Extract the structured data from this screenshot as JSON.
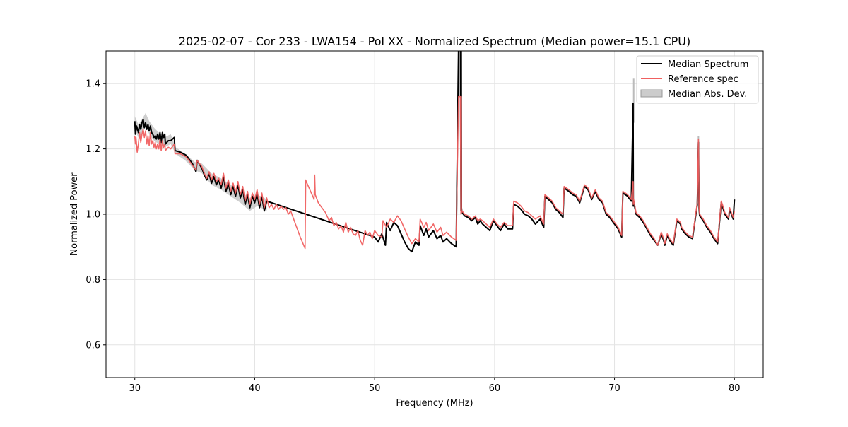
{
  "chart_data": {
    "type": "line",
    "title": "2025-02-07 - Cor 233 - LWA154 - Pol XX - Normalized Spectrum (Median power=15.1 CPU)",
    "xlabel": "Frequency (MHz)",
    "ylabel": "Normalized Power",
    "xlim": [
      27.6,
      82.4
    ],
    "ylim": [
      0.5,
      1.5
    ],
    "xticks": [
      30,
      40,
      50,
      60,
      70,
      80
    ],
    "yticks": [
      0.6,
      0.8,
      1.0,
      1.2,
      1.4
    ],
    "xtick_labels": [
      "30",
      "40",
      "50",
      "60",
      "70",
      "80"
    ],
    "ytick_labels": [
      "0.6",
      "0.8",
      "1.0",
      "1.2",
      "1.4"
    ],
    "grid": true,
    "legend_position": "top-right",
    "legend": [
      {
        "label": "Median Spectrum",
        "kind": "line",
        "color": "#000000"
      },
      {
        "label": "Reference spec",
        "kind": "line",
        "color": "#f06060"
      },
      {
        "label": "Median Abs. Dev.",
        "kind": "band",
        "color": "#bbbbbb"
      }
    ],
    "series": [
      {
        "name": "Median Abs. Dev.",
        "kind": "band",
        "color": "#bbbbbb",
        "x": [
          30.0,
          30.3,
          30.6,
          30.9,
          31.2,
          31.6,
          32.0,
          32.5,
          33.0,
          33.4,
          34.2,
          35.0,
          35.6,
          36.4,
          37.2,
          38.0,
          38.8,
          39.6,
          40.2,
          40.8,
          41.0
        ],
        "lower": [
          1.26,
          1.235,
          1.245,
          1.275,
          1.245,
          1.225,
          1.215,
          1.205,
          1.215,
          1.185,
          1.165,
          1.135,
          1.125,
          1.09,
          1.075,
          1.055,
          1.035,
          1.01,
          1.025,
          1.015,
          1.01
        ],
        "upper": [
          1.3,
          1.275,
          1.29,
          1.31,
          1.285,
          1.265,
          1.25,
          1.235,
          1.245,
          1.205,
          1.185,
          1.16,
          1.155,
          1.125,
          1.11,
          1.09,
          1.07,
          1.05,
          1.06,
          1.05,
          1.045
        ]
      },
      {
        "name": "Median Spectrum",
        "kind": "line",
        "color": "#000000",
        "x": [
          30.0,
          30.05,
          30.15,
          30.3,
          30.4,
          30.5,
          30.6,
          30.7,
          30.8,
          30.9,
          31.0,
          31.1,
          31.2,
          31.3,
          31.4,
          31.5,
          31.6,
          31.7,
          31.8,
          31.9,
          32.0,
          32.1,
          32.2,
          32.3,
          32.4,
          32.5,
          32.55,
          32.8,
          33.0,
          33.3,
          33.35,
          33.8,
          34.3,
          34.8,
          35.1,
          35.2,
          35.6,
          35.8,
          36.0,
          36.2,
          36.4,
          36.6,
          36.8,
          37.0,
          37.2,
          37.4,
          37.6,
          37.8,
          38.0,
          38.2,
          38.4,
          38.6,
          38.8,
          39.0,
          39.2,
          39.4,
          39.6,
          39.8,
          40.0,
          40.2,
          40.4,
          40.6,
          40.8,
          41.0,
          50.0,
          50.3,
          50.6,
          50.9,
          51.0,
          51.3,
          51.6,
          51.9,
          52.2,
          52.5,
          52.8,
          53.1,
          53.4,
          53.7,
          53.8,
          54.1,
          54.3,
          54.5,
          54.9,
          55.2,
          55.5,
          55.7,
          56.0,
          56.4,
          56.8,
          57.0,
          57.15,
          57.2,
          57.22,
          57.24,
          57.26,
          57.3,
          57.5,
          57.8,
          58.1,
          58.4,
          58.6,
          58.8,
          59.0,
          59.3,
          59.6,
          59.9,
          60.2,
          60.5,
          60.8,
          61.1,
          61.5,
          61.6,
          61.9,
          62.2,
          62.5,
          62.8,
          63.1,
          63.4,
          63.8,
          64.1,
          64.2,
          64.5,
          64.8,
          65.1,
          65.4,
          65.7,
          65.8,
          66.2,
          66.5,
          66.8,
          67.1,
          67.5,
          67.8,
          68.1,
          68.4,
          68.7,
          69.0,
          69.3,
          69.6,
          69.9,
          70.3,
          70.6,
          70.7,
          71.1,
          71.4,
          71.55,
          71.57,
          71.6,
          71.8,
          72.1,
          72.4,
          72.7,
          73.0,
          73.3,
          73.6,
          73.9,
          74.1,
          74.2,
          74.4,
          74.6,
          74.9,
          75.2,
          75.5,
          75.6,
          75.9,
          76.2,
          76.5,
          76.9,
          77.0,
          77.05,
          77.1,
          77.4,
          77.7,
          78.0,
          78.3,
          78.6,
          78.9,
          79.0,
          79.2,
          79.5,
          79.6,
          79.9,
          80.0
        ],
        "y": [
          1.285,
          1.245,
          1.27,
          1.25,
          1.275,
          1.26,
          1.28,
          1.29,
          1.265,
          1.28,
          1.26,
          1.275,
          1.255,
          1.27,
          1.25,
          1.245,
          1.235,
          1.24,
          1.23,
          1.245,
          1.23,
          1.25,
          1.22,
          1.25,
          1.235,
          1.245,
          1.215,
          1.225,
          1.225,
          1.235,
          1.195,
          1.19,
          1.18,
          1.155,
          1.13,
          1.165,
          1.14,
          1.12,
          1.105,
          1.125,
          1.095,
          1.115,
          1.09,
          1.105,
          1.08,
          1.115,
          1.07,
          1.095,
          1.06,
          1.085,
          1.055,
          1.09,
          1.05,
          1.075,
          1.03,
          1.06,
          1.02,
          1.055,
          1.035,
          1.065,
          1.02,
          1.055,
          1.01,
          1.04,
          0.93,
          0.915,
          0.94,
          0.905,
          0.975,
          0.95,
          0.975,
          0.965,
          0.94,
          0.915,
          0.895,
          0.885,
          0.915,
          0.905,
          0.965,
          0.935,
          0.955,
          0.93,
          0.95,
          0.925,
          0.935,
          0.915,
          0.925,
          0.91,
          0.9,
          1.51,
          1.51,
          1.01,
          1.51,
          1.02,
          1.01,
          1.005,
          0.995,
          0.99,
          0.98,
          0.99,
          0.97,
          0.98,
          0.97,
          0.96,
          0.95,
          0.98,
          0.965,
          0.95,
          0.97,
          0.955,
          0.955,
          1.03,
          1.025,
          1.015,
          1.0,
          0.995,
          0.985,
          0.97,
          0.985,
          0.96,
          1.055,
          1.045,
          1.035,
          1.015,
          1.005,
          0.99,
          1.08,
          1.07,
          1.06,
          1.055,
          1.035,
          1.085,
          1.075,
          1.045,
          1.07,
          1.045,
          1.035,
          1.0,
          0.99,
          0.975,
          0.955,
          0.93,
          1.065,
          1.055,
          1.04,
          1.34,
          1.025,
          1.04,
          1.0,
          0.99,
          0.975,
          0.955,
          0.935,
          0.92,
          0.905,
          0.94,
          0.92,
          0.905,
          0.935,
          0.92,
          0.905,
          0.98,
          0.97,
          0.955,
          0.94,
          0.93,
          0.925,
          1.03,
          1.22,
          1.02,
          0.995,
          0.98,
          0.96,
          0.945,
          0.925,
          0.91,
          1.035,
          1.025,
          1.0,
          0.985,
          1.015,
          0.985,
          1.045
        ]
      },
      {
        "name": "Reference spec",
        "kind": "line",
        "color": "#f06060",
        "x": [
          30.0,
          30.05,
          30.1,
          30.2,
          30.3,
          30.4,
          30.5,
          30.6,
          30.7,
          30.8,
          30.9,
          31.0,
          31.1,
          31.2,
          31.3,
          31.4,
          31.5,
          31.6,
          31.7,
          31.8,
          31.9,
          32.0,
          32.1,
          32.2,
          32.3,
          32.4,
          32.5,
          32.55,
          32.8,
          33.0,
          33.3,
          33.35,
          33.8,
          34.3,
          34.8,
          35.1,
          35.2,
          35.6,
          35.8,
          36.0,
          36.2,
          36.4,
          36.6,
          36.8,
          37.0,
          37.2,
          37.4,
          37.6,
          37.8,
          38.0,
          38.2,
          38.4,
          38.6,
          38.8,
          39.0,
          39.2,
          39.4,
          39.6,
          39.8,
          40.0,
          40.2,
          40.4,
          40.6,
          40.8,
          41.0,
          41.2,
          41.4,
          41.6,
          41.8,
          42.0,
          42.2,
          42.4,
          42.6,
          42.8,
          43.0,
          43.4,
          43.8,
          44.2,
          44.25,
          44.3,
          44.6,
          44.9,
          44.95,
          45.0,
          45.05,
          45.3,
          45.6,
          45.9,
          46.2,
          46.4,
          46.6,
          46.8,
          47.0,
          47.2,
          47.4,
          47.6,
          47.8,
          48.0,
          48.2,
          48.4,
          48.6,
          48.8,
          49.0,
          49.2,
          49.4,
          49.6,
          49.8,
          50.0,
          50.3,
          50.6,
          50.7,
          51.0,
          51.3,
          51.6,
          51.9,
          52.2,
          52.5,
          52.8,
          53.1,
          53.4,
          53.7,
          53.8,
          54.1,
          54.3,
          54.5,
          54.9,
          55.2,
          55.5,
          55.7,
          56.0,
          56.4,
          56.8,
          57.0,
          57.15,
          57.2,
          57.22,
          57.24,
          57.26,
          57.3,
          57.5,
          57.8,
          58.1,
          58.4,
          58.6,
          58.8,
          59.0,
          59.3,
          59.6,
          59.9,
          60.2,
          60.5,
          60.8,
          61.1,
          61.5,
          61.6,
          61.9,
          62.2,
          62.5,
          62.8,
          63.1,
          63.4,
          63.8,
          64.1,
          64.2,
          64.5,
          64.8,
          65.1,
          65.4,
          65.7,
          65.8,
          66.2,
          66.5,
          66.8,
          67.1,
          67.5,
          67.8,
          68.1,
          68.4,
          68.7,
          69.0,
          69.3,
          69.6,
          69.9,
          70.3,
          70.6,
          70.7,
          71.1,
          71.4,
          71.55,
          71.57,
          71.6,
          71.8,
          72.1,
          72.4,
          72.7,
          73.0,
          73.3,
          73.6,
          73.9,
          74.1,
          74.2,
          74.4,
          74.6,
          74.9,
          75.2,
          75.5,
          75.6,
          75.9,
          76.2,
          76.5,
          76.9,
          77.0,
          77.05,
          77.1,
          77.4,
          77.7,
          78.0,
          78.3,
          78.6,
          78.9,
          79.0,
          79.2,
          79.5,
          79.6,
          79.9,
          80.0
        ],
        "y": [
          1.24,
          1.215,
          1.235,
          1.19,
          1.215,
          1.25,
          1.22,
          1.245,
          1.26,
          1.235,
          1.255,
          1.215,
          1.24,
          1.21,
          1.25,
          1.215,
          1.225,
          1.205,
          1.22,
          1.2,
          1.215,
          1.2,
          1.23,
          1.195,
          1.225,
          1.205,
          1.215,
          1.195,
          1.205,
          1.2,
          1.215,
          1.185,
          1.185,
          1.175,
          1.15,
          1.135,
          1.165,
          1.145,
          1.125,
          1.11,
          1.13,
          1.105,
          1.125,
          1.1,
          1.11,
          1.09,
          1.125,
          1.08,
          1.105,
          1.07,
          1.095,
          1.065,
          1.1,
          1.06,
          1.085,
          1.04,
          1.07,
          1.03,
          1.065,
          1.045,
          1.075,
          1.03,
          1.065,
          1.02,
          1.05,
          1.02,
          1.03,
          1.015,
          1.03,
          1.015,
          1.025,
          1.015,
          1.02,
          1.0,
          1.01,
          0.97,
          0.93,
          0.895,
          1.105,
          1.1,
          1.075,
          1.05,
          1.045,
          1.12,
          1.06,
          1.035,
          1.02,
          1.005,
          0.98,
          0.99,
          0.965,
          0.975,
          0.955,
          0.965,
          0.945,
          0.975,
          0.945,
          0.96,
          0.94,
          0.935,
          0.95,
          0.92,
          0.905,
          0.95,
          0.935,
          0.945,
          0.925,
          0.95,
          0.935,
          0.93,
          0.98,
          0.96,
          0.985,
          0.975,
          0.995,
          0.98,
          0.955,
          0.93,
          0.91,
          0.925,
          0.915,
          0.985,
          0.96,
          0.975,
          0.95,
          0.97,
          0.945,
          0.96,
          0.935,
          0.945,
          0.93,
          0.92,
          1.36,
          1.36,
          1.0,
          1.36,
          1.01,
          1.005,
          1.01,
          1.0,
          0.995,
          0.985,
          0.995,
          0.98,
          0.985,
          0.98,
          0.97,
          0.96,
          0.985,
          0.97,
          0.96,
          0.975,
          0.965,
          0.965,
          1.04,
          1.035,
          1.025,
          1.01,
          1.005,
          0.995,
          0.985,
          0.995,
          0.97,
          1.06,
          1.05,
          1.04,
          1.02,
          1.01,
          1.0,
          1.085,
          1.075,
          1.065,
          1.06,
          1.04,
          1.09,
          1.08,
          1.05,
          1.075,
          1.05,
          1.04,
          1.005,
          0.995,
          0.98,
          0.96,
          0.935,
          1.07,
          1.06,
          1.045,
          1.1,
          1.03,
          1.045,
          1.005,
          0.995,
          0.98,
          0.96,
          0.94,
          0.925,
          0.905,
          0.945,
          0.925,
          0.91,
          0.94,
          0.925,
          0.91,
          0.985,
          0.975,
          0.96,
          0.945,
          0.935,
          0.93,
          1.035,
          1.23,
          1.025,
          1.0,
          0.985,
          0.965,
          0.95,
          0.93,
          0.915,
          1.04,
          1.03,
          1.005,
          0.99,
          1.02,
          0.99,
          1.01
        ]
      }
    ],
    "annotations": [
      {
        "name": "mad-spike-71.6",
        "x": 71.6,
        "y_low": 1.28,
        "y_high": 1.415
      },
      {
        "name": "mad-spike-77.0",
        "x": 77.0,
        "y_low": 1.2,
        "y_high": 1.24
      }
    ]
  }
}
